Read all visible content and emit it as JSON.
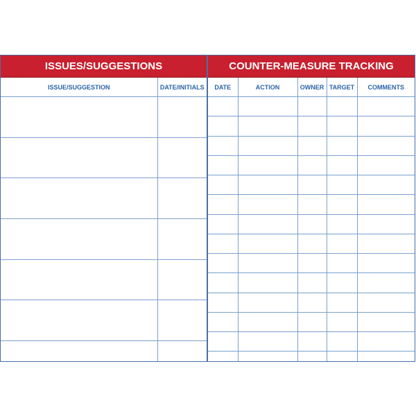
{
  "issues": {
    "title": "ISSUES/SUGGESTIONS",
    "columns": [
      "ISSUE/SUGGESTION",
      "DATE/INITIALS"
    ],
    "row_count": 7
  },
  "countermeasure": {
    "title": "COUNTER-MEASURE TRACKING",
    "columns": [
      "DATE",
      "ACTION",
      "OWNER",
      "TARGET",
      "COMMENTS"
    ],
    "row_count": 14
  },
  "colors": {
    "header": "#c8202e",
    "text": "#2a62a8",
    "grid": "#7aa0cc"
  }
}
